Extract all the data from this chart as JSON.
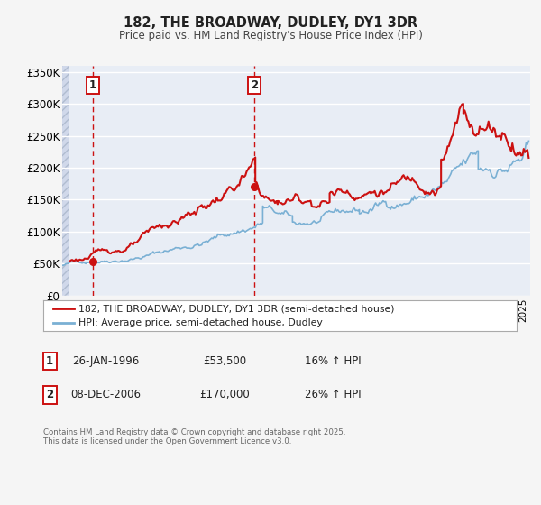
{
  "title": "182, THE BROADWAY, DUDLEY, DY1 3DR",
  "subtitle": "Price paid vs. HM Land Registry's House Price Index (HPI)",
  "ylim": [
    0,
    360000
  ],
  "xlim": [
    1994,
    2025.5
  ],
  "plot_bg_color": "#e8edf5",
  "grid_color": "#ffffff",
  "hpi_color": "#7ab0d4",
  "price_color": "#cc1111",
  "sale1_date": 1996.07,
  "sale1_price": 53500,
  "sale2_date": 2006.93,
  "sale2_price": 170000,
  "legend_label1": "182, THE BROADWAY, DUDLEY, DY1 3DR (semi-detached house)",
  "legend_label2": "HPI: Average price, semi-detached house, Dudley",
  "annotation1_date": "26-JAN-1996",
  "annotation1_price": "£53,500",
  "annotation1_hpi": "16% ↑ HPI",
  "annotation2_date": "08-DEC-2006",
  "annotation2_price": "£170,000",
  "annotation2_hpi": "26% ↑ HPI",
  "footnote": "Contains HM Land Registry data © Crown copyright and database right 2025.\nThis data is licensed under the Open Government Licence v3.0.",
  "yticks": [
    0,
    50000,
    100000,
    150000,
    200000,
    250000,
    300000,
    350000
  ],
  "ytick_labels": [
    "£0",
    "£50K",
    "£100K",
    "£150K",
    "£200K",
    "£250K",
    "£300K",
    "£350K"
  ]
}
